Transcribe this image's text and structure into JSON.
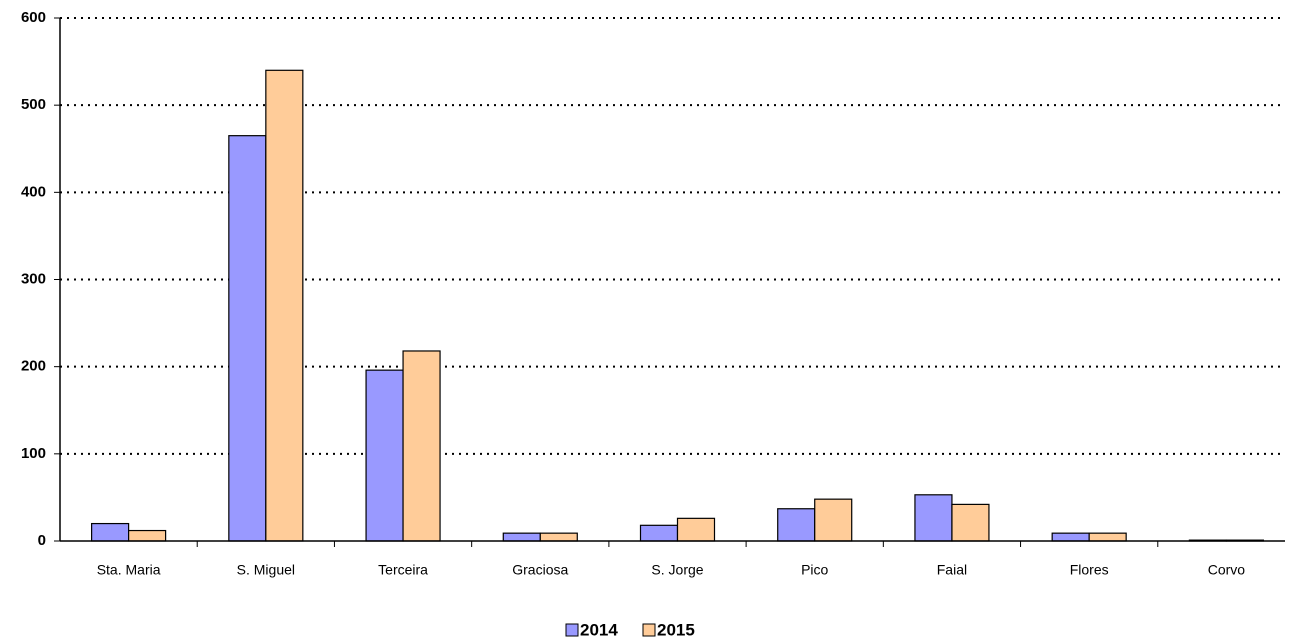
{
  "chart_data": {
    "type": "bar",
    "categories": [
      "Sta. Maria",
      "S. Miguel",
      "Terceira",
      "Graciosa",
      "S. Jorge",
      "Pico",
      "Faial",
      "Flores",
      "Corvo"
    ],
    "series": [
      {
        "name": "2014",
        "color": "#9999ff",
        "values": [
          20,
          465,
          196,
          9,
          18,
          37,
          53,
          9,
          1
        ]
      },
      {
        "name": "2015",
        "color": "#ffcc99",
        "values": [
          12,
          540,
          218,
          9,
          26,
          48,
          42,
          9,
          1
        ]
      }
    ],
    "ylim": [
      0,
      600
    ],
    "yticks": [
      0,
      100,
      200,
      300,
      400,
      500,
      600
    ],
    "grid": true,
    "legend": "bottom"
  }
}
